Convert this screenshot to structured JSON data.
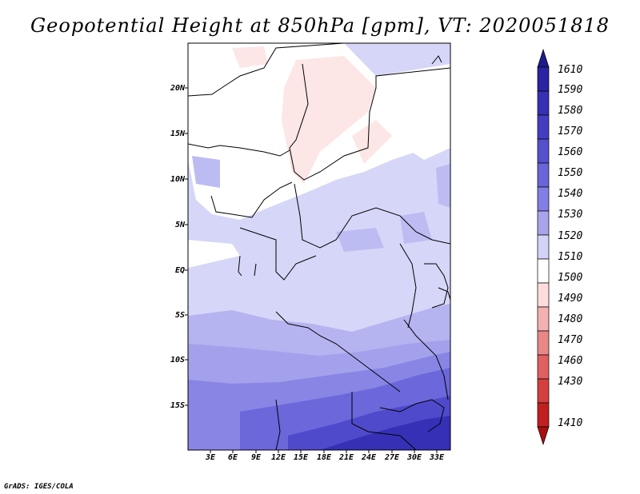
{
  "title": "Geopotential Height at 850hPa [gpm], VT: 2020051818",
  "credit": "GrADS: IGES/COLA",
  "map": {
    "lat_labels": [
      "20N",
      "15N",
      "10N",
      "5N",
      "EQ",
      "5S",
      "10S",
      "15S"
    ],
    "lon_labels": [
      "3E",
      "6E",
      "9E",
      "12E",
      "15E",
      "18E",
      "21E",
      "24E",
      "27E",
      "30E",
      "33E"
    ]
  },
  "colorbar": {
    "labels": [
      "1610",
      "1590",
      "1580",
      "1570",
      "1560",
      "1550",
      "1540",
      "1530",
      "1520",
      "1510",
      "1500",
      "1490",
      "1480",
      "1470",
      "1460",
      "1430",
      "1410"
    ],
    "colors": [
      "#1d1a8c",
      "#2a24a3",
      "#3630b4",
      "#433dc0",
      "#5550cc",
      "#6a64d8",
      "#837ee3",
      "#a7a4eb",
      "#d3d3f7",
      "#ffffff",
      "#fcdcdc",
      "#f3b1b1",
      "#e98787",
      "#df6060",
      "#d43f3f",
      "#c12020",
      "#a81010"
    ]
  }
}
